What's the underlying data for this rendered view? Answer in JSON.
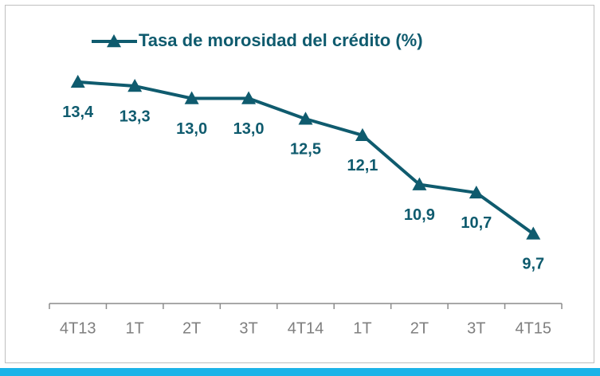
{
  "chart_data": {
    "type": "line",
    "categories": [
      "4T13",
      "1T",
      "2T",
      "3T",
      "4T14",
      "1T",
      "2T",
      "3T",
      "4T15"
    ],
    "series": [
      {
        "name": "Tasa de morosidad  del crédito (%)",
        "color": "#0f5b6e",
        "values": [
          13.4,
          13.3,
          13.0,
          13.0,
          12.5,
          12.1,
          10.9,
          10.7,
          9.7
        ],
        "value_labels": [
          "13,4",
          "13,3",
          "13,0",
          "13,0",
          "12,5",
          "12,1",
          "10,9",
          "10,7",
          "9,7"
        ]
      }
    ],
    "ylim": [
      8,
      14
    ],
    "grid": false,
    "legend": "top"
  }
}
